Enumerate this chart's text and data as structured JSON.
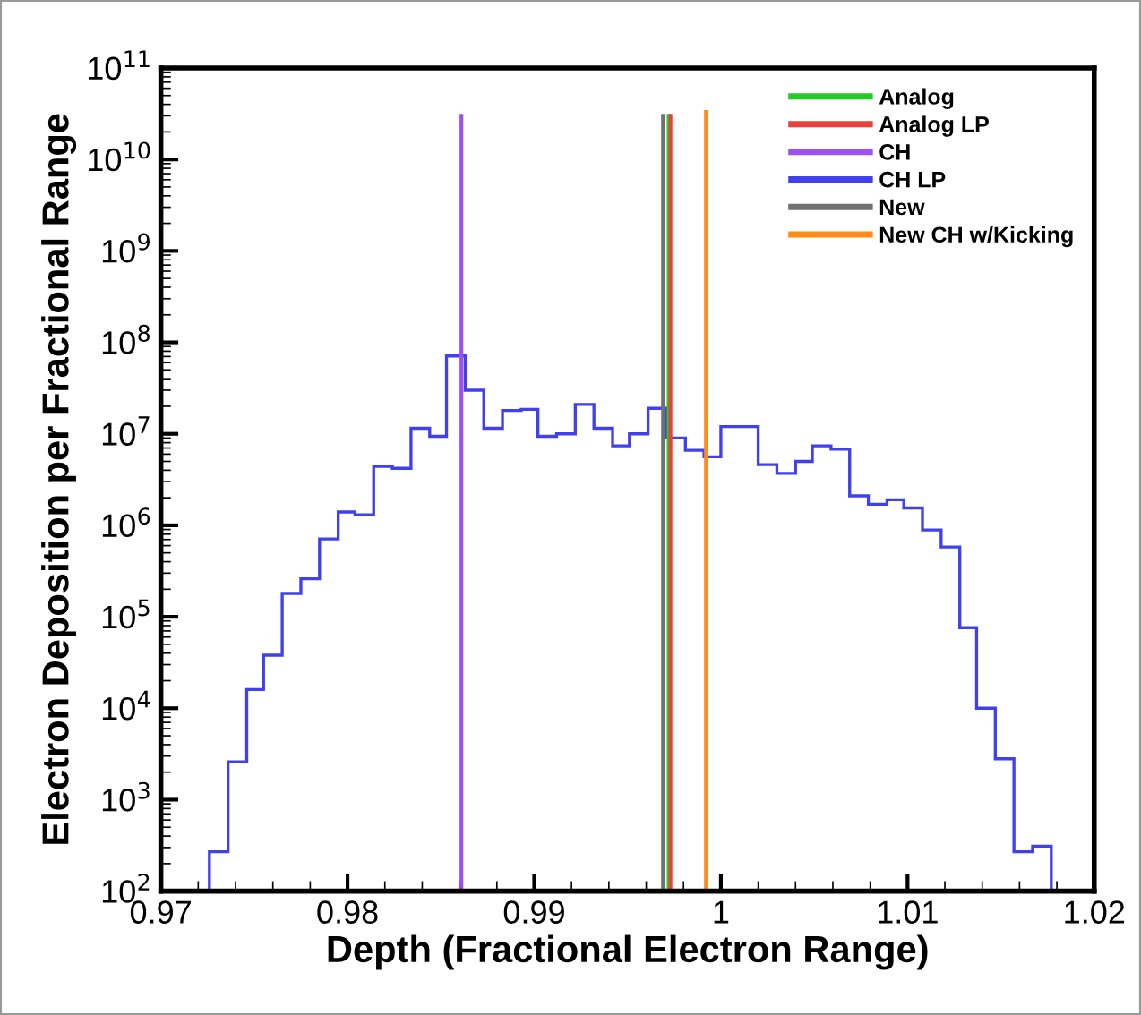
{
  "chart_data": {
    "type": "histogram",
    "xlabel": "Depth (Fractional Electron Range)",
    "ylabel": "Electron Deposition per Fractional Range",
    "log": "y",
    "xlim": [
      0.97,
      1.02
    ],
    "xticks": [
      0.97,
      0.98,
      0.99,
      1,
      1.01,
      1.02
    ],
    "ylim": [
      100,
      100000000000.0
    ],
    "yticks": [
      {
        "value": 100,
        "label": "10$^{2}$"
      },
      {
        "value": 1000,
        "label": "10$^{3}$"
      },
      {
        "value": 10000,
        "label": "10$^{4}$"
      },
      {
        "value": 100000,
        "label": "10$^{5}$"
      },
      {
        "value": 1000000,
        "label": "10$^{6}$"
      },
      {
        "value": 10000000,
        "label": "10$^{7}$"
      },
      {
        "value": 100000000,
        "label": "10$^{8}$"
      },
      {
        "value": 1000000000,
        "label": "10$^{9}$"
      },
      {
        "value": 10000000000,
        "label": "10$^{10}$"
      },
      {
        "value": 100000000000,
        "label": "10$^{11}$"
      }
    ],
    "legend": "top right",
    "grid": false,
    "series": [
      {
        "name": "Analog",
        "type": "line",
        "color": "#22cc22",
        "x": [
          0.9972,
          0.9972
        ],
        "values": [
          100,
          30000000000.0
        ]
      },
      {
        "name": "Analog LP",
        "type": "line",
        "color": "#e8403c",
        "x": [
          0.9973,
          0.9973
        ],
        "values": [
          100,
          30000000000.0
        ]
      },
      {
        "name": "CH",
        "type": "line",
        "color": "#a050f0",
        "x": [
          0.9861,
          0.9861
        ],
        "values": [
          100,
          30000000000.0
        ]
      },
      {
        "name": "CH LP",
        "color": "#4040ee",
        "bins": [
          0.9726,
          0.9736,
          0.9746,
          0.9755,
          0.9765,
          0.9775,
          0.9785,
          0.9795,
          0.9804,
          0.9814,
          0.9824,
          0.9834,
          0.9844,
          0.9853,
          0.9863,
          0.9873,
          0.9883,
          0.9893,
          0.9902,
          0.9912,
          0.9922,
          0.9932,
          0.9942,
          0.9951,
          0.9961,
          0.9971,
          0.9981,
          0.9991,
          1.0,
          1.001,
          1.002,
          1.003,
          1.004,
          1.0049,
          1.0059,
          1.0069,
          1.0079,
          1.0089,
          1.0098,
          1.0108,
          1.0118,
          1.0128,
          1.0137,
          1.0147,
          1.0157,
          1.0167,
          1.0177
        ],
        "values": [
          270,
          2600,
          16000,
          38000,
          180000,
          260000,
          710000,
          1400000,
          1300000,
          4400000,
          4200000,
          11500000,
          9400000,
          71000000,
          30000000,
          11500000,
          18000000,
          18500000,
          9400000,
          10000000,
          21000000,
          11500000,
          7400000,
          10000000,
          19000000,
          9000000,
          6600000,
          5600000,
          12000000,
          12000000,
          4600000,
          3700000,
          5000000,
          7400000,
          6800000,
          2100000,
          1700000,
          1900000,
          1550000,
          890000,
          580000,
          76000,
          10000,
          2800,
          270,
          310
        ]
      },
      {
        "name": "New",
        "type": "line",
        "color": "#707070",
        "x": [
          0.9969,
          0.9969
        ],
        "values": [
          100,
          30000000000.0
        ]
      },
      {
        "name": "New CH w/Kicking",
        "type": "line",
        "color": "#ff8c1a",
        "x": [
          0.9992,
          0.9992
        ],
        "values": [
          100,
          33000000000.0
        ]
      }
    ]
  }
}
